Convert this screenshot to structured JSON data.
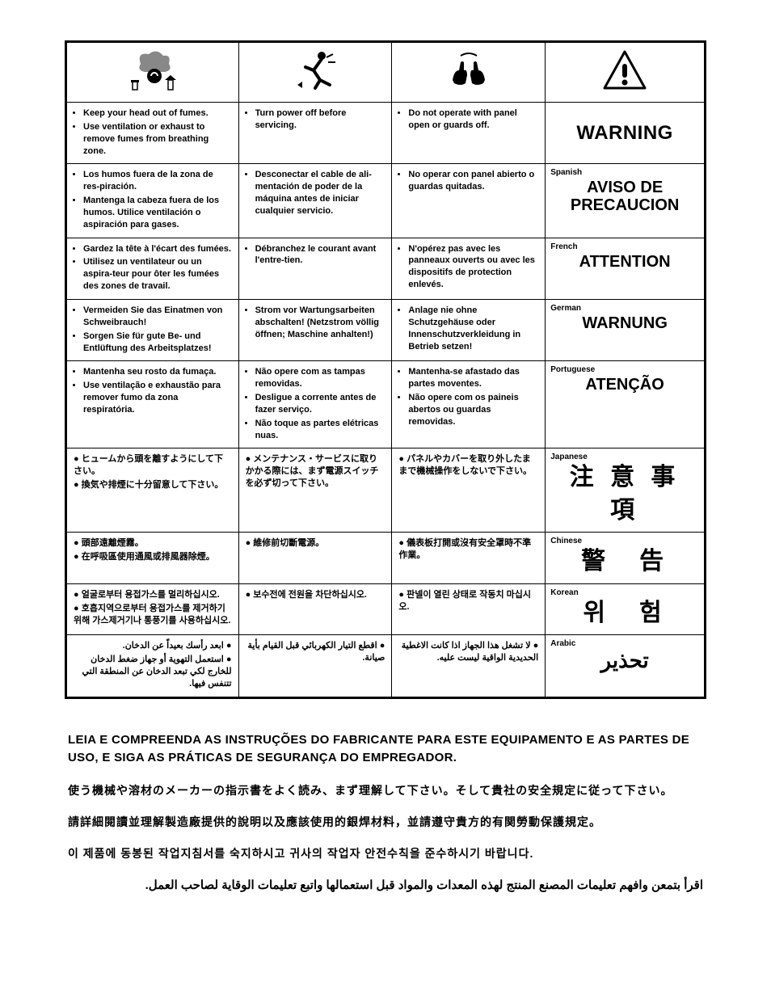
{
  "icons": {
    "fumes": "fumes-head-icon",
    "trip": "trip-fall-icon",
    "hands": "hands-panel-icon",
    "exclaim": "warning-triangle-icon"
  },
  "rows": [
    {
      "lang_label": "",
      "warn": "WARNING",
      "warn_class": "warn-eng",
      "col1": [
        "Keep your head out of fumes.",
        "Use ventilation or exhaust to remove fumes from breathing zone."
      ],
      "col2": [
        "Turn power off before servicing."
      ],
      "col3": [
        "Do not operate with panel open or guards off."
      ],
      "list_style": "bullet"
    },
    {
      "lang_label": "Spanish",
      "warn": "AVISO DE PRECAUCION",
      "warn_class": "warn-big",
      "col1": [
        "Los humos fuera de la zona de res-piración.",
        "Mantenga la cabeza fuera de los humos. Utilice ventilación o aspiración para gases."
      ],
      "col2": [
        "Desconectar el cable de ali-mentación de poder de la máquina antes de iniciar cualquier servicio."
      ],
      "col3": [
        "No operar con panel abierto o guardas quitadas."
      ],
      "list_style": "bullet"
    },
    {
      "lang_label": "French",
      "warn": "ATTENTION",
      "warn_class": "warn-big",
      "col1": [
        "Gardez la tête à l'écart des fumées.",
        "Utilisez un ventilateur ou un aspira-teur pour ôter les fumées des zones de travail."
      ],
      "col2": [
        "Débranchez le courant avant l'entre-tien."
      ],
      "col3": [
        "N'opérez pas avec les panneaux ouverts ou avec les dispositifs de protection enlevés."
      ],
      "list_style": "bullet"
    },
    {
      "lang_label": "German",
      "warn": "WARNUNG",
      "warn_class": "warn-big",
      "col1": [
        "Vermeiden Sie das Einatmen von Schweibrauch!",
        "Sorgen Sie für gute Be- und Entlüftung des Arbeitsplatzes!"
      ],
      "col2": [
        "Strom vor Wartungsarbeiten abschalten! (Netzstrom völlig öffnen; Maschine anhalten!)"
      ],
      "col3": [
        "Anlage nie ohne Schutzgehäuse oder Innenschutzverkleidung in Betrieb setzen!"
      ],
      "list_style": "bullet"
    },
    {
      "lang_label": "Portuguese",
      "warn": "ATENÇÃO",
      "warn_class": "warn-big",
      "col1": [
        "Mantenha seu rosto da fumaça.",
        "Use ventilação e exhaustão para remover fumo da zona respiratória."
      ],
      "col2": [
        "Não opere com as tampas removidas.",
        "Desligue a corrente antes de fazer serviço.",
        "Não toque as partes elétricas nuas."
      ],
      "col3": [
        "Mantenha-se afastado das partes moventes.",
        "Não opere com os paineis abertos ou guardas removidas."
      ],
      "list_style": "bullet"
    },
    {
      "lang_label": "Japanese",
      "warn": "注 意 事 項",
      "warn_class": "warn-cjk",
      "col1": [
        "ヒュームから頭を離すようにして下さい。",
        "換気や排煙に十分留意して下さい。"
      ],
      "col2": [
        "メンテナンス・サービスに取りかかる際には、まず電源スイッチを必ず切って下さい。"
      ],
      "col3": [
        "パネルやカバーを取り外したままで機械操作をしないで下さい。"
      ],
      "list_style": "dot"
    },
    {
      "lang_label": "Chinese",
      "warn": "警　告",
      "warn_class": "warn-cjk",
      "col1": [
        "頭部遠離煙霧。",
        "在呼吸區使用通風或排風器除煙。"
      ],
      "col2": [
        "維修前切斷電源。"
      ],
      "col3": [
        "儀表板打開或沒有安全罩時不準作業。"
      ],
      "list_style": "dot"
    },
    {
      "lang_label": "Korean",
      "warn": "위　험",
      "warn_class": "warn-cjk",
      "col1": [
        "얼굴로부터 용접가스를 멀리하십시오.",
        "호흡지역으로부터 용접가스를 제거하기 위해 가스제거기나 통풍기를 사용하십시오."
      ],
      "col2": [
        "보수전에 전원을 차단하십시오."
      ],
      "col3": [
        "판넬이 열린 상태로 작동치 마십시오."
      ],
      "list_style": "dot"
    },
    {
      "lang_label": "Arabic",
      "warn": "تحذير",
      "warn_class": "warn-ar",
      "rtl": true,
      "col1": [
        "ابعد رأسك بعيداً عن الدخان.",
        "استعمل التهوية أو جهاز ضغط الدخان للخارج لكي تبعد الدخان عن المنطقة التي تتنفس فيها."
      ],
      "col2": [
        "اقطع التيار الكهربائي قبل القيام بأية صيانة."
      ],
      "col3": [
        "لا تشغل هذا الجهاز اذا كانت الاغطية الحديدية الواقية ليست عليه."
      ],
      "list_style": "dot"
    }
  ],
  "footer": {
    "pt": "LEIA E COMPREENDA AS INSTRUÇÕES DO FABRICANTE PARA ESTE EQUIPAMENTO E AS PARTES DE USO, E SIGA AS PRÁTICAS DE SEGURANÇA DO EMPREGADOR.",
    "ja": "使う機械や溶材のメーカーの指示書をよく読み、まず理解して下さい。そして貴社の安全規定に従って下さい。",
    "zh": "請詳細閱讀並理解製造廠提供的說明以及應該使用的銀焊材料，並請遵守貴方的有関勞動保護規定。",
    "ko": "이 제품에 동봉된 작업지침서를 숙지하시고 귀사의 작업자 안전수칙을 준수하시기 바랍니다.",
    "ar": "اقرأ بتمعن وافهم تعليمات المصنع المنتج لهذه المعدات والمواد قبل استعمالها واتبع تعليمات الوقاية لصاحب العمل."
  }
}
